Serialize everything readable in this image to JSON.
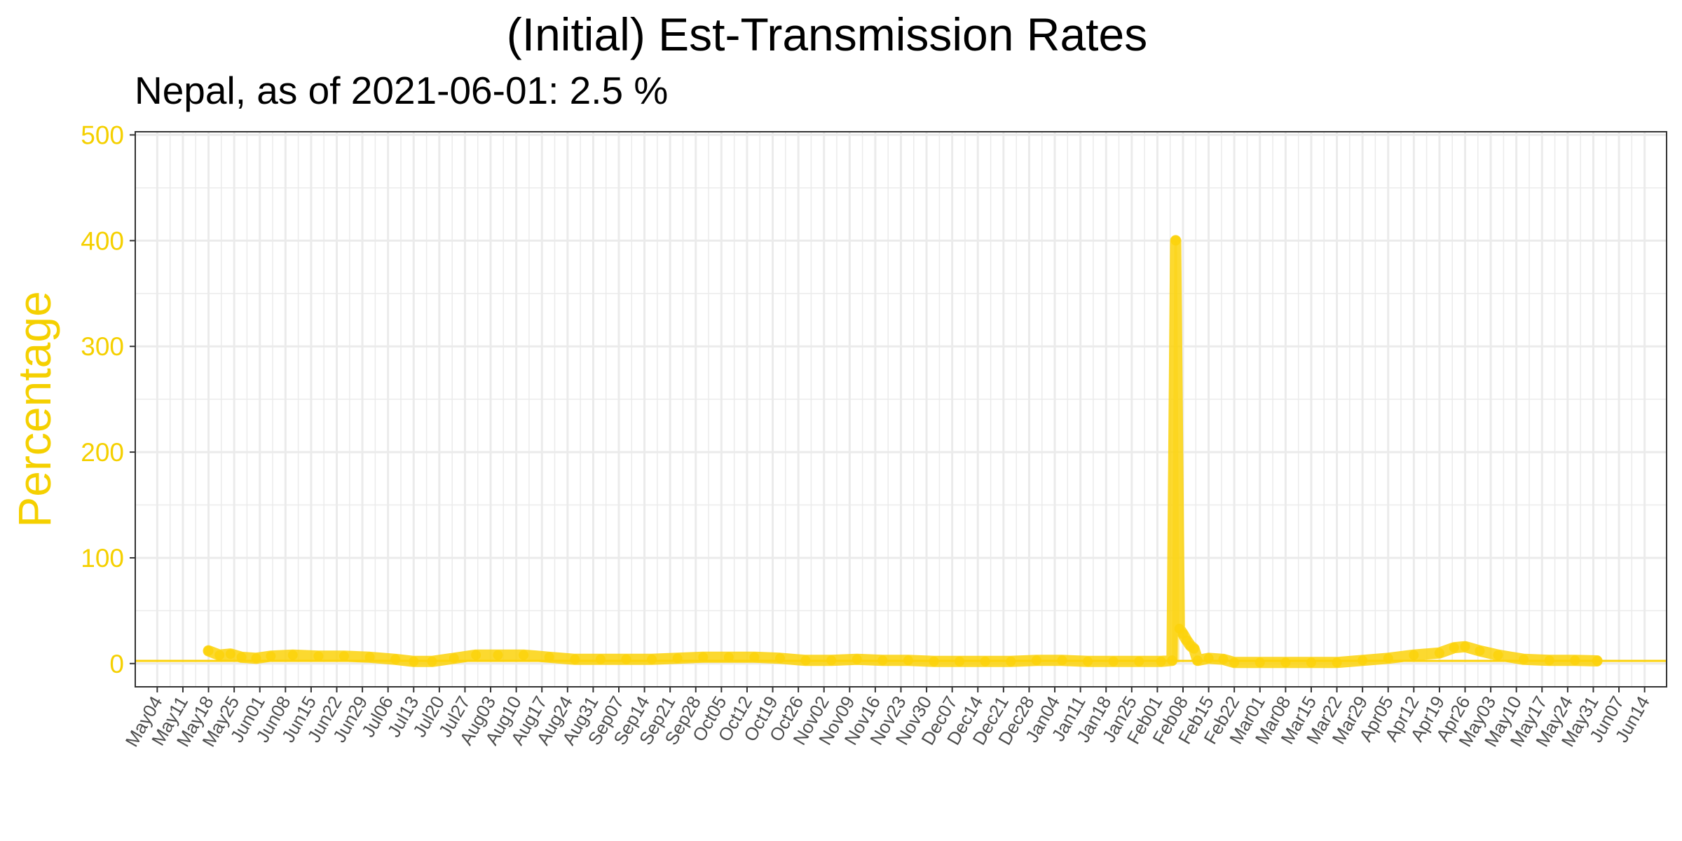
{
  "chart_data": {
    "type": "line",
    "title": "(Initial) Est-Transmission Rates",
    "subtitle": "Nepal, as of 2021-06-01:  2.5 %",
    "xlabel": "",
    "ylabel": "Percentage",
    "ylim": [
      -22,
      503
    ],
    "yticks": [
      0,
      100,
      200,
      300,
      400,
      500
    ],
    "xlim": [
      "2020-04-28",
      "2021-06-20"
    ],
    "xtick_labels": [
      "May04",
      "May11",
      "May18",
      "May25",
      "Jun01",
      "Jun08",
      "Jun15",
      "Jun22",
      "Jun29",
      "Jul06",
      "Jul13",
      "Jul20",
      "Jul27",
      "Aug03",
      "Aug10",
      "Aug17",
      "Aug24",
      "Aug31",
      "Sep07",
      "Sep14",
      "Sep21",
      "Sep28",
      "Oct05",
      "Oct12",
      "Oct19",
      "Oct26",
      "Nov02",
      "Nov09",
      "Nov16",
      "Nov23",
      "Nov30",
      "Dec07",
      "Dec14",
      "Dec21",
      "Dec28",
      "Jan04",
      "Jan11",
      "Jan18",
      "Jan25",
      "Feb01",
      "Feb08",
      "Feb15",
      "Feb22",
      "Mar01",
      "Mar08",
      "Mar15",
      "Mar22",
      "Mar29",
      "Apr05",
      "Apr12",
      "Apr19",
      "Apr26",
      "May03",
      "May10",
      "May17",
      "May24",
      "May31",
      "Jun07",
      "Jun14"
    ],
    "xtick_dates": [
      "2020-05-04",
      "2020-05-11",
      "2020-05-18",
      "2020-05-25",
      "2020-06-01",
      "2020-06-08",
      "2020-06-15",
      "2020-06-22",
      "2020-06-29",
      "2020-07-06",
      "2020-07-13",
      "2020-07-20",
      "2020-07-27",
      "2020-08-03",
      "2020-08-10",
      "2020-08-17",
      "2020-08-24",
      "2020-08-31",
      "2020-09-07",
      "2020-09-14",
      "2020-09-21",
      "2020-09-28",
      "2020-10-05",
      "2020-10-12",
      "2020-10-19",
      "2020-10-26",
      "2020-11-02",
      "2020-11-09",
      "2020-11-16",
      "2020-11-23",
      "2020-11-30",
      "2020-12-07",
      "2020-12-14",
      "2020-12-21",
      "2020-12-28",
      "2021-01-04",
      "2021-01-11",
      "2021-01-18",
      "2021-01-25",
      "2021-02-01",
      "2021-02-08",
      "2021-02-15",
      "2021-02-22",
      "2021-03-01",
      "2021-03-08",
      "2021-03-15",
      "2021-03-22",
      "2021-03-29",
      "2021-04-05",
      "2021-04-12",
      "2021-04-19",
      "2021-04-26",
      "2021-05-03",
      "2021-05-10",
      "2021-05-17",
      "2021-05-24",
      "2021-05-31",
      "2021-06-07",
      "2021-06-14"
    ],
    "reference_line_y": 2.5,
    "grid": true,
    "legend": "none",
    "colors": {
      "series": "#fcd20a",
      "spike": "#fde47a",
      "axis_text_y": "#f5d000",
      "grid": "#ebebeb",
      "panel_border": "#333333",
      "x_tick_text": "#4d4d4d"
    },
    "series": [
      {
        "points": [
          [
            "2020-05-18",
            12
          ],
          [
            "2020-05-21",
            8
          ],
          [
            "2020-05-24",
            9
          ],
          [
            "2020-05-27",
            6
          ],
          [
            "2020-05-31",
            5
          ],
          [
            "2020-06-04",
            7
          ],
          [
            "2020-06-10",
            8
          ],
          [
            "2020-06-17",
            7
          ],
          [
            "2020-06-24",
            7
          ],
          [
            "2020-07-01",
            6
          ],
          [
            "2020-07-08",
            4
          ],
          [
            "2020-07-13",
            2
          ],
          [
            "2020-07-18",
            2
          ],
          [
            "2020-07-24",
            5
          ],
          [
            "2020-07-30",
            8
          ],
          [
            "2020-08-05",
            8
          ],
          [
            "2020-08-12",
            8
          ],
          [
            "2020-08-19",
            6
          ],
          [
            "2020-08-26",
            4
          ],
          [
            "2020-09-02",
            4
          ],
          [
            "2020-09-09",
            4
          ],
          [
            "2020-09-16",
            4
          ],
          [
            "2020-09-23",
            5
          ],
          [
            "2020-09-30",
            6
          ],
          [
            "2020-10-07",
            6
          ],
          [
            "2020-10-14",
            6
          ],
          [
            "2020-10-21",
            5
          ],
          [
            "2020-10-28",
            3
          ],
          [
            "2020-11-04",
            3
          ],
          [
            "2020-11-11",
            4
          ],
          [
            "2020-11-18",
            3
          ],
          [
            "2020-11-25",
            3
          ],
          [
            "2020-12-02",
            2
          ],
          [
            "2020-12-09",
            2
          ],
          [
            "2020-12-16",
            2
          ],
          [
            "2020-12-23",
            2
          ],
          [
            "2020-12-30",
            3
          ],
          [
            "2021-01-06",
            3
          ],
          [
            "2021-01-13",
            2
          ],
          [
            "2021-01-20",
            2
          ],
          [
            "2021-01-27",
            2
          ],
          [
            "2021-02-02",
            2
          ],
          [
            "2021-02-05",
            3
          ],
          [
            "2021-02-06",
            400
          ],
          [
            "2021-02-07",
            33
          ],
          [
            "2021-02-08",
            28
          ],
          [
            "2021-02-09",
            22
          ],
          [
            "2021-02-10",
            17
          ],
          [
            "2021-02-11",
            14
          ],
          [
            "2021-02-12",
            3
          ],
          [
            "2021-02-15",
            5
          ],
          [
            "2021-02-19",
            4
          ],
          [
            "2021-02-22",
            1
          ],
          [
            "2021-03-01",
            1
          ],
          [
            "2021-03-08",
            1
          ],
          [
            "2021-03-15",
            1
          ],
          [
            "2021-03-22",
            1
          ],
          [
            "2021-03-29",
            3
          ],
          [
            "2021-04-05",
            5
          ],
          [
            "2021-04-12",
            8
          ],
          [
            "2021-04-19",
            10
          ],
          [
            "2021-04-23",
            15
          ],
          [
            "2021-04-26",
            16
          ],
          [
            "2021-04-30",
            12
          ],
          [
            "2021-05-05",
            8
          ],
          [
            "2021-05-12",
            4
          ],
          [
            "2021-05-19",
            3
          ],
          [
            "2021-05-26",
            3
          ],
          [
            "2021-06-01",
            2.5
          ]
        ]
      }
    ]
  }
}
